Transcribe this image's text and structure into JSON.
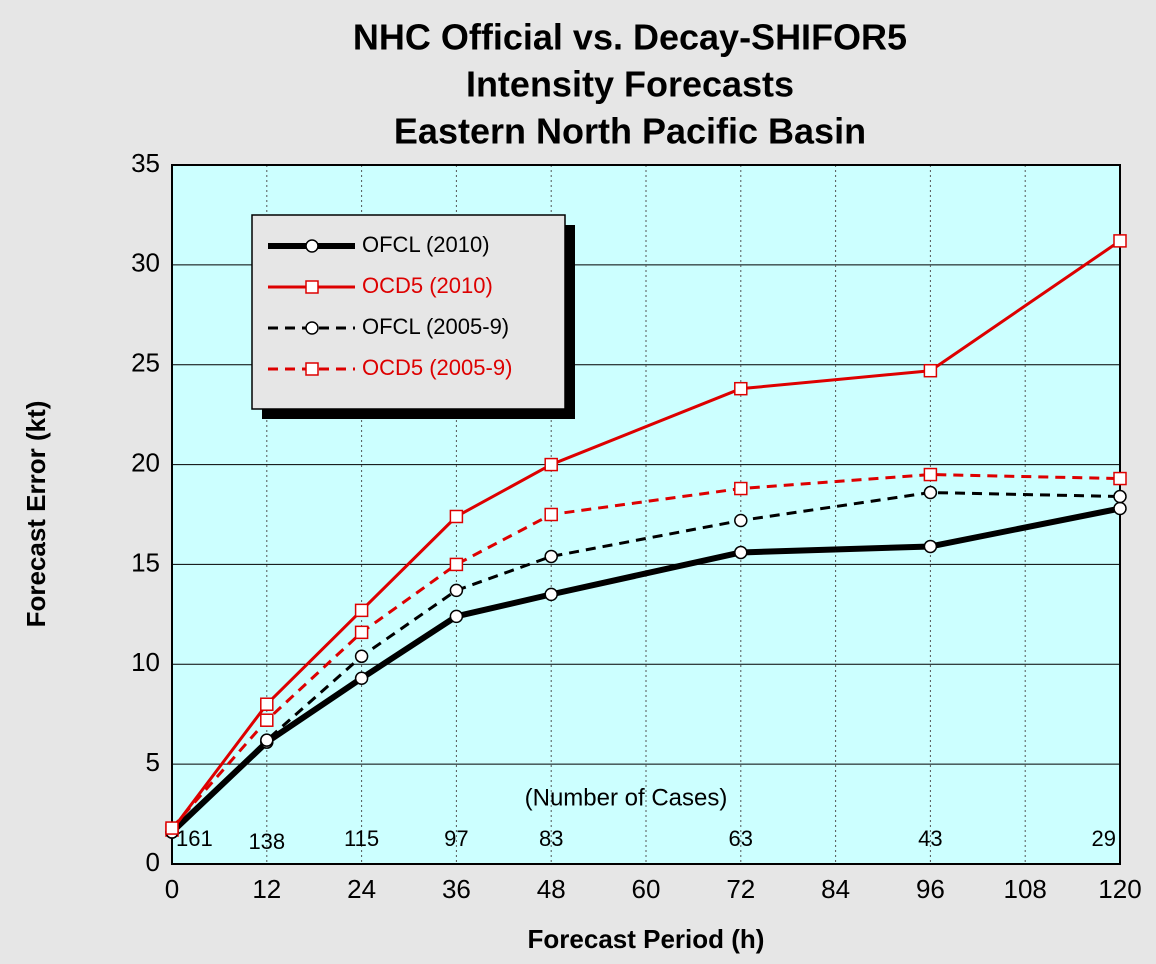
{
  "chart_data": {
    "type": "line",
    "title": [
      "NHC Official vs. Decay-SHIFOR5",
      "Intensity Forecasts",
      "Eastern North Pacific Basin"
    ],
    "x_label": "Forecast Period (h)",
    "y_label": "Forecast Error (kt)",
    "x": [
      0,
      12,
      24,
      36,
      48,
      72,
      96,
      120
    ],
    "series": [
      {
        "name": "OFCL (2010)",
        "color": "#000000",
        "dashed": false,
        "marker": "circle",
        "width": 6,
        "values": [
          1.6,
          6.1,
          9.3,
          12.4,
          13.5,
          15.6,
          15.9,
          17.8
        ]
      },
      {
        "name": "OCD5 (2010)",
        "color": "#dd0000",
        "dashed": false,
        "marker": "square",
        "width": 3,
        "values": [
          1.7,
          8.0,
          12.7,
          17.4,
          20.0,
          23.8,
          24.7,
          31.2
        ]
      },
      {
        "name": "OFCL (2005-9)",
        "color": "#000000",
        "dashed": true,
        "marker": "circle",
        "width": 3,
        "values": [
          1.6,
          6.2,
          10.4,
          13.7,
          15.4,
          17.2,
          18.6,
          18.4
        ]
      },
      {
        "name": "OCD5 (2005-9)",
        "color": "#dd0000",
        "dashed": true,
        "marker": "square",
        "width": 3,
        "values": [
          1.8,
          7.2,
          11.6,
          15.0,
          17.5,
          18.8,
          19.5,
          19.3
        ]
      }
    ],
    "cases": {
      "label": "(Number of Cases)",
      "counts": [
        161,
        138,
        115,
        97,
        83,
        63,
        43,
        29
      ]
    },
    "xlim": [
      0,
      120
    ],
    "xticks": [
      0,
      12,
      24,
      36,
      48,
      60,
      72,
      84,
      96,
      108,
      120
    ],
    "ylim": [
      0,
      35
    ],
    "yticks": [
      0,
      5,
      10,
      15,
      20,
      25,
      30,
      35
    ],
    "grid": true,
    "legend": "upper left"
  }
}
